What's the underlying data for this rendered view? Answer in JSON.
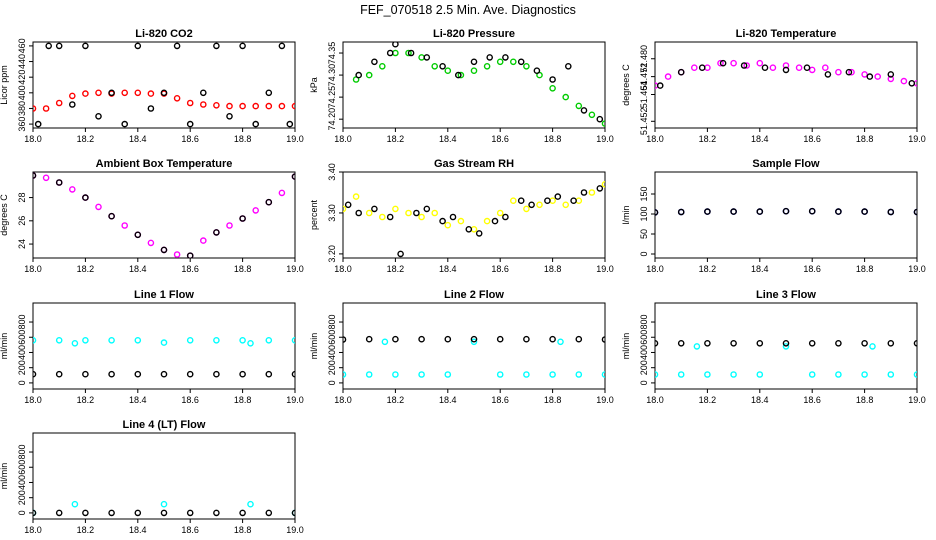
{
  "figure": {
    "title": "FEF_070518  2.5 Min. Ave. Diagnostics"
  },
  "chart_data": [
    {
      "type": "scatter",
      "title": "Li-820 CO2",
      "xlabel": "",
      "ylabel": "Licor ppm",
      "xlim": [
        18.0,
        19.0
      ],
      "ylim": [
        355,
        465
      ],
      "xticks": [
        "18.0",
        "18.2",
        "18.4",
        "18.6",
        "18.8",
        "19.0"
      ],
      "yticks": [
        "360",
        "380",
        "400",
        "420",
        "440",
        "460"
      ],
      "series": [
        {
          "color": "#ff0000",
          "marker": "circle",
          "x": [
            18.0,
            18.05,
            18.1,
            18.15,
            18.2,
            18.25,
            18.3,
            18.35,
            18.4,
            18.45,
            18.5,
            18.55,
            18.6,
            18.65,
            18.7,
            18.75,
            18.8,
            18.85,
            18.9,
            18.95,
            19.0
          ],
          "y": [
            380,
            380,
            387,
            396,
            399,
            400,
            399,
            400,
            400,
            399,
            399,
            393,
            387,
            385,
            384,
            383,
            383,
            383,
            383,
            383,
            383
          ]
        },
        {
          "color": "#000000",
          "marker": "circle",
          "x": [
            18.02,
            18.06,
            18.1,
            18.15,
            18.2,
            18.25,
            18.3,
            18.35,
            18.4,
            18.45,
            18.5,
            18.55,
            18.6,
            18.65,
            18.7,
            18.75,
            18.8,
            18.85,
            18.9,
            18.95,
            18.98
          ],
          "y": [
            360,
            460,
            460,
            385,
            460,
            370,
            400,
            360,
            460,
            380,
            400,
            460,
            360,
            400,
            460,
            370,
            460,
            360,
            400,
            460,
            360
          ]
        }
      ]
    },
    {
      "type": "scatter",
      "title": "Li-820 Pressure",
      "xlabel": "",
      "ylabel": "kPa",
      "xlim": [
        18.0,
        19.0
      ],
      "ylim": [
        74.18,
        74.375
      ],
      "xticks": [
        "18.0",
        "18.2",
        "18.4",
        "18.6",
        "18.8",
        "19.0"
      ],
      "yticks": [
        "74.20",
        "74.25",
        "74.30",
        "74.35"
      ],
      "series": [
        {
          "color": "#00cc00",
          "marker": "circle",
          "x": [
            18.05,
            18.1,
            18.15,
            18.2,
            18.25,
            18.3,
            18.35,
            18.4,
            18.45,
            18.5,
            18.55,
            18.6,
            18.65,
            18.7,
            18.75,
            18.8,
            18.85,
            18.9,
            18.95,
            19.0
          ],
          "y": [
            74.29,
            74.3,
            74.32,
            74.35,
            74.35,
            74.34,
            74.32,
            74.31,
            74.3,
            74.31,
            74.32,
            74.33,
            74.33,
            74.32,
            74.3,
            74.27,
            74.25,
            74.23,
            74.21,
            74.19
          ]
        },
        {
          "color": "#000000",
          "marker": "circle",
          "x": [
            18.06,
            18.12,
            18.18,
            18.2,
            18.26,
            18.32,
            18.38,
            18.44,
            18.5,
            18.56,
            18.62,
            18.68,
            18.74,
            18.8,
            18.86,
            18.92,
            18.98
          ],
          "y": [
            74.3,
            74.33,
            74.35,
            74.37,
            74.35,
            74.34,
            74.32,
            74.3,
            74.33,
            74.34,
            74.34,
            74.33,
            74.31,
            74.29,
            74.32,
            74.22,
            74.2
          ]
        }
      ]
    },
    {
      "type": "scatter",
      "title": "Li-820 Temperature",
      "xlabel": "",
      "ylabel": "degrees C",
      "xlim": [
        18.0,
        19.0
      ],
      "ylim": [
        51.449,
        51.4875
      ],
      "xticks": [
        "18.0",
        "18.2",
        "18.4",
        "18.6",
        "18.8",
        "19.0"
      ],
      "yticks": [
        "51.452",
        "51.464",
        "51.472",
        "51.480"
      ],
      "series": [
        {
          "color": "#ff00ff",
          "marker": "circle",
          "x": [
            18.0,
            18.05,
            18.1,
            18.15,
            18.2,
            18.25,
            18.3,
            18.35,
            18.4,
            18.45,
            18.5,
            18.55,
            18.6,
            18.65,
            18.7,
            18.75,
            18.8,
            18.85,
            18.9,
            18.95,
            19.0
          ],
          "y": [
            51.468,
            51.472,
            51.474,
            51.476,
            51.476,
            51.478,
            51.478,
            51.477,
            51.478,
            51.476,
            51.477,
            51.476,
            51.475,
            51.476,
            51.474,
            51.474,
            51.473,
            51.472,
            51.471,
            51.47,
            51.469
          ]
        },
        {
          "color": "#000000",
          "marker": "circle",
          "x": [
            18.02,
            18.1,
            18.18,
            18.26,
            18.34,
            18.42,
            18.5,
            18.58,
            18.66,
            18.74,
            18.82,
            18.9,
            18.98
          ],
          "y": [
            51.468,
            51.474,
            51.476,
            51.478,
            51.477,
            51.476,
            51.475,
            51.476,
            51.473,
            51.474,
            51.472,
            51.473,
            51.469
          ]
        }
      ]
    },
    {
      "type": "scatter",
      "title": "Ambient Box Temperature",
      "xlabel": "",
      "ylabel": "degrees C",
      "xlim": [
        18.0,
        19.0
      ],
      "ylim": [
        22.8,
        30.2
      ],
      "xticks": [
        "18.0",
        "18.2",
        "18.4",
        "18.6",
        "18.8",
        "19.0"
      ],
      "yticks": [
        "24",
        "26",
        "28"
      ],
      "series": [
        {
          "color": "#ff00ff",
          "marker": "circle",
          "x": [
            18.0,
            18.05,
            18.1,
            18.15,
            18.2,
            18.25,
            18.3,
            18.35,
            18.4,
            18.45,
            18.5,
            18.55,
            18.6,
            18.65,
            18.7,
            18.75,
            18.8,
            18.85,
            18.9,
            18.95,
            19.0
          ],
          "y": [
            29.9,
            29.7,
            29.3,
            28.7,
            28.0,
            27.2,
            26.4,
            25.6,
            24.8,
            24.1,
            23.5,
            23.1,
            23.0,
            24.3,
            25.0,
            25.6,
            26.2,
            26.9,
            27.6,
            28.4,
            29.8
          ]
        },
        {
          "color": "#000000",
          "marker": "circle",
          "x": [
            18.0,
            18.1,
            18.2,
            18.3,
            18.4,
            18.5,
            18.6,
            18.7,
            18.8,
            18.9,
            19.0
          ],
          "y": [
            29.9,
            29.3,
            28.0,
            26.4,
            24.8,
            23.5,
            23.0,
            25.0,
            26.2,
            27.6,
            29.8
          ]
        }
      ]
    },
    {
      "type": "scatter",
      "title": "Gas Stream RH",
      "xlabel": "",
      "ylabel": "percent",
      "xlim": [
        18.0,
        19.0
      ],
      "ylim": [
        3.19,
        3.4
      ],
      "xticks": [
        "18.0",
        "18.2",
        "18.4",
        "18.6",
        "18.8",
        "19.0"
      ],
      "yticks": [
        "3.20",
        "3.30",
        "3.40"
      ],
      "series": [
        {
          "color": "#ffff00",
          "marker": "circle",
          "x": [
            18.0,
            18.05,
            18.1,
            18.15,
            18.2,
            18.25,
            18.3,
            18.35,
            18.4,
            18.45,
            18.5,
            18.55,
            18.6,
            18.65,
            18.7,
            18.75,
            18.8,
            18.85,
            18.9,
            18.95,
            19.0
          ],
          "y": [
            3.31,
            3.34,
            3.3,
            3.29,
            3.31,
            3.3,
            3.29,
            3.3,
            3.27,
            3.28,
            3.26,
            3.28,
            3.3,
            3.33,
            3.31,
            3.32,
            3.33,
            3.32,
            3.33,
            3.35,
            3.37
          ]
        },
        {
          "color": "#000000",
          "marker": "circle",
          "x": [
            18.02,
            18.06,
            18.12,
            18.18,
            18.22,
            18.28,
            18.32,
            18.38,
            18.42,
            18.48,
            18.52,
            18.58,
            18.62,
            18.68,
            18.72,
            18.78,
            18.82,
            18.88,
            18.92,
            18.98
          ],
          "y": [
            3.32,
            3.3,
            3.31,
            3.29,
            3.2,
            3.3,
            3.31,
            3.28,
            3.29,
            3.26,
            3.25,
            3.28,
            3.29,
            3.33,
            3.32,
            3.33,
            3.34,
            3.33,
            3.35,
            3.36
          ]
        }
      ]
    },
    {
      "type": "scatter",
      "title": "Sample Flow",
      "xlabel": "",
      "ylabel": "l/min",
      "xlim": [
        18.0,
        19.0
      ],
      "ylim": [
        -10,
        205
      ],
      "xticks": [
        "18.0",
        "18.2",
        "18.4",
        "18.6",
        "18.8",
        "19.0"
      ],
      "yticks": [
        "0",
        "50",
        "100",
        "150"
      ],
      "series": [
        {
          "color": "#0000ff",
          "marker": "circle",
          "x": [
            18.0,
            18.1,
            18.2,
            18.3,
            18.4,
            18.5,
            18.6,
            18.7,
            18.8,
            18.9,
            19.0
          ],
          "y": [
            104,
            105,
            106,
            106,
            106,
            107,
            107,
            106,
            106,
            105,
            105
          ]
        },
        {
          "color": "#000000",
          "marker": "circle",
          "x": [
            18.0,
            18.1,
            18.2,
            18.3,
            18.4,
            18.5,
            18.6,
            18.7,
            18.8,
            18.9,
            19.0
          ],
          "y": [
            104,
            105,
            106,
            106,
            106,
            107,
            107,
            106,
            106,
            105,
            105
          ]
        }
      ]
    },
    {
      "type": "scatter",
      "title": "Line 1 Flow",
      "xlabel": "",
      "ylabel": "ml/min",
      "xlim": [
        18.0,
        19.0
      ],
      "ylim": [
        -80,
        1050
      ],
      "xticks": [
        "18.0",
        "18.2",
        "18.4",
        "18.6",
        "18.8",
        "19.0"
      ],
      "yticks": [
        "0",
        "200",
        "400",
        "600",
        "800"
      ],
      "series": [
        {
          "color": "#00ffff",
          "marker": "circle",
          "x": [
            18.0,
            18.1,
            18.16,
            18.2,
            18.3,
            18.4,
            18.5,
            18.6,
            18.7,
            18.8,
            18.83,
            18.9,
            19.0
          ],
          "y": [
            560,
            560,
            520,
            560,
            560,
            560,
            530,
            560,
            560,
            560,
            520,
            560,
            560
          ]
        },
        {
          "color": "#000000",
          "marker": "circle",
          "x": [
            18.0,
            18.1,
            18.2,
            18.3,
            18.4,
            18.5,
            18.6,
            18.7,
            18.8,
            18.9,
            19.0
          ],
          "y": [
            115,
            115,
            115,
            115,
            115,
            115,
            115,
            115,
            115,
            115,
            115
          ]
        }
      ]
    },
    {
      "type": "scatter",
      "title": "Line 2 Flow",
      "xlabel": "",
      "ylabel": "ml/min",
      "xlim": [
        18.0,
        19.0
      ],
      "ylim": [
        -80,
        1050
      ],
      "xticks": [
        "18.0",
        "18.2",
        "18.4",
        "18.6",
        "18.8",
        "19.0"
      ],
      "yticks": [
        "0",
        "200",
        "400",
        "600",
        "800"
      ],
      "series": [
        {
          "color": "#00ffff",
          "marker": "circle",
          "x": [
            18.0,
            18.1,
            18.16,
            18.2,
            18.3,
            18.4,
            18.5,
            18.6,
            18.7,
            18.8,
            18.83,
            18.9,
            19.0
          ],
          "y": [
            110,
            110,
            540,
            110,
            110,
            110,
            540,
            110,
            110,
            110,
            540,
            110,
            110
          ]
        },
        {
          "color": "#000000",
          "marker": "circle",
          "x": [
            18.0,
            18.1,
            18.2,
            18.3,
            18.4,
            18.5,
            18.6,
            18.7,
            18.8,
            18.9,
            19.0
          ],
          "y": [
            570,
            575,
            575,
            575,
            575,
            575,
            575,
            575,
            575,
            575,
            570
          ]
        }
      ]
    },
    {
      "type": "scatter",
      "title": "Line 3 Flow",
      "xlabel": "",
      "ylabel": "ml/min",
      "xlim": [
        18.0,
        19.0
      ],
      "ylim": [
        -80,
        1050
      ],
      "xticks": [
        "18.0",
        "18.2",
        "18.4",
        "18.6",
        "18.8",
        "19.0"
      ],
      "yticks": [
        "0",
        "200",
        "400",
        "600",
        "800"
      ],
      "series": [
        {
          "color": "#00ffff",
          "marker": "circle",
          "x": [
            18.0,
            18.1,
            18.16,
            18.2,
            18.3,
            18.4,
            18.5,
            18.6,
            18.7,
            18.8,
            18.83,
            18.9,
            19.0
          ],
          "y": [
            110,
            110,
            480,
            110,
            110,
            110,
            480,
            110,
            110,
            110,
            480,
            110,
            110
          ]
        },
        {
          "color": "#000000",
          "marker": "circle",
          "x": [
            18.0,
            18.1,
            18.2,
            18.3,
            18.4,
            18.5,
            18.6,
            18.7,
            18.8,
            18.9,
            19.0
          ],
          "y": [
            520,
            520,
            520,
            520,
            520,
            520,
            520,
            520,
            520,
            520,
            520
          ]
        }
      ]
    },
    {
      "type": "scatter",
      "title": "Line 4 (LT) Flow",
      "xlabel": "",
      "ylabel": "ml/min",
      "xlim": [
        18.0,
        19.0
      ],
      "ylim": [
        -80,
        1050
      ],
      "xticks": [
        "18.0",
        "18.2",
        "18.4",
        "18.6",
        "18.8",
        "19.0"
      ],
      "yticks": [
        "0",
        "200",
        "400",
        "600",
        "800"
      ],
      "series": [
        {
          "color": "#00ffff",
          "marker": "circle",
          "x": [
            18.0,
            18.16,
            18.5,
            18.83,
            19.0
          ],
          "y": [
            0,
            115,
            115,
            115,
            0
          ]
        },
        {
          "color": "#000000",
          "marker": "circle",
          "x": [
            18.0,
            18.1,
            18.2,
            18.3,
            18.4,
            18.5,
            18.6,
            18.7,
            18.8,
            18.9,
            19.0
          ],
          "y": [
            0,
            0,
            0,
            0,
            0,
            0,
            0,
            0,
            0,
            0,
            0
          ]
        }
      ]
    }
  ]
}
